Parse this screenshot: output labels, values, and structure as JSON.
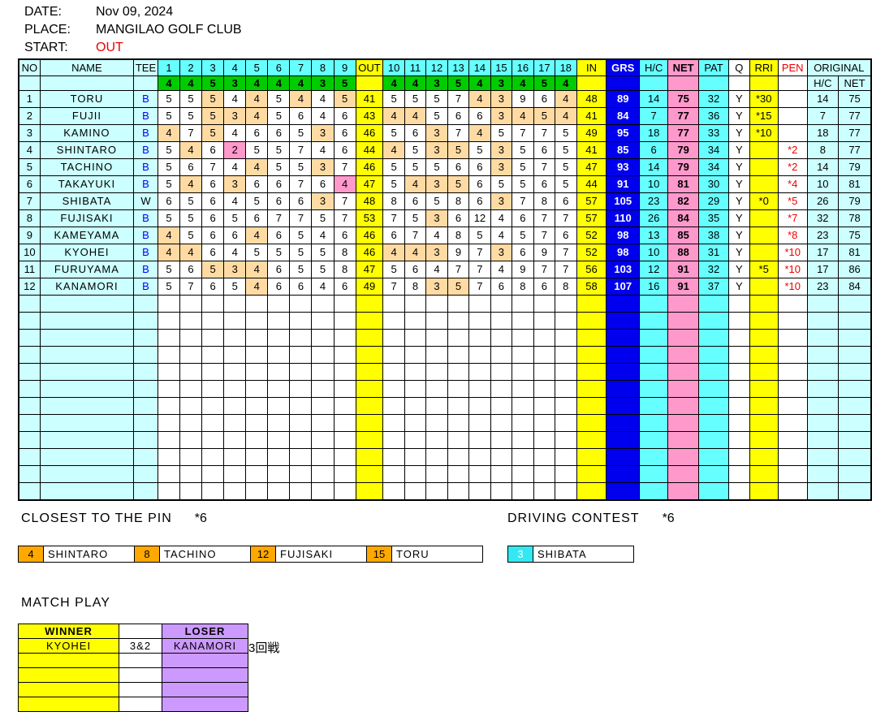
{
  "meta": {
    "date_label": "DATE:",
    "date_value": "Nov 09, 2024",
    "place_label": "PLACE:",
    "place_value": "MANGILAO GOLF CLUB",
    "start_label": "START:",
    "start_value": "OUT"
  },
  "colors": {
    "pale_cyan": "#CCFFFF",
    "bright_cyan": "#66FFFF",
    "par_green": "#00CC00",
    "total_yellow": "#FFFF00",
    "grs_blue": "#0000EE",
    "net_pink": "#FF99CC",
    "par_hit_tan": "#FFDBA3",
    "birdie_pink": "#FF99CC",
    "ctp_orange": "#FFA800",
    "loser_purple": "#CC99FF",
    "alert_red": "#EE0000",
    "tee_blue": "#0000FF"
  },
  "scorecard": {
    "columns": {
      "no": "NO",
      "name": "NAME",
      "tee": "TEE",
      "out": "OUT",
      "in": "IN",
      "grs": "GRS",
      "hc": "H/C",
      "net": "NET",
      "pat": "PAT",
      "q": "Q",
      "rri": "RRI",
      "pen": "PEN",
      "original": "ORIGINAL",
      "orig_hc": "H/C",
      "orig_net": "NET"
    },
    "holes_out": [
      "1",
      "2",
      "3",
      "4",
      "5",
      "6",
      "7",
      "8",
      "9"
    ],
    "holes_in": [
      "10",
      "11",
      "12",
      "13",
      "14",
      "15",
      "16",
      "17",
      "18"
    ],
    "pars_out": [
      4,
      4,
      5,
      3,
      4,
      4,
      4,
      3,
      5
    ],
    "pars_in": [
      4,
      4,
      3,
      5,
      4,
      3,
      4,
      5,
      4
    ],
    "empty_row_count": 12,
    "players": [
      {
        "no": 1,
        "name": "TORU",
        "tee": "B",
        "out_scores": [
          5,
          5,
          5,
          4,
          4,
          5,
          4,
          4,
          5
        ],
        "out": 41,
        "in_scores": [
          5,
          5,
          5,
          7,
          4,
          3,
          9,
          6,
          4
        ],
        "in": 48,
        "grs": 89,
        "hc": 14,
        "net": 75,
        "pat": 32,
        "q": "Y",
        "rri": "*30",
        "pen": "",
        "orig_hc": 14,
        "orig_net": 75
      },
      {
        "no": 2,
        "name": "FUJII",
        "tee": "B",
        "out_scores": [
          5,
          5,
          5,
          3,
          4,
          5,
          6,
          4,
          6
        ],
        "out": 43,
        "in_scores": [
          4,
          4,
          5,
          6,
          6,
          3,
          4,
          5,
          4
        ],
        "in": 41,
        "grs": 84,
        "hc": 7,
        "net": 77,
        "pat": 36,
        "q": "Y",
        "rri": "*15",
        "pen": "",
        "orig_hc": 7,
        "orig_net": 77
      },
      {
        "no": 3,
        "name": "KAMINO",
        "tee": "B",
        "out_scores": [
          4,
          7,
          5,
          4,
          6,
          6,
          5,
          3,
          6
        ],
        "out": 46,
        "in_scores": [
          5,
          6,
          3,
          7,
          4,
          5,
          7,
          7,
          5
        ],
        "in": 49,
        "grs": 95,
        "hc": 18,
        "net": 77,
        "pat": 33,
        "q": "Y",
        "rri": "*10",
        "pen": "",
        "orig_hc": 18,
        "orig_net": 77
      },
      {
        "no": 4,
        "name": "SHINTARO",
        "tee": "B",
        "out_scores": [
          5,
          4,
          6,
          2,
          5,
          5,
          7,
          4,
          6
        ],
        "out": 44,
        "in_scores": [
          4,
          5,
          3,
          5,
          5,
          3,
          5,
          6,
          5
        ],
        "in": 41,
        "grs": 85,
        "hc": 6,
        "net": 79,
        "pat": 34,
        "q": "Y",
        "rri": "",
        "pen": "*2",
        "orig_hc": 8,
        "orig_net": 77
      },
      {
        "no": 5,
        "name": "TACHINO",
        "tee": "B",
        "out_scores": [
          5,
          6,
          7,
          4,
          4,
          5,
          5,
          3,
          7
        ],
        "out": 46,
        "in_scores": [
          5,
          5,
          5,
          6,
          6,
          3,
          5,
          7,
          5
        ],
        "in": 47,
        "grs": 93,
        "hc": 14,
        "net": 79,
        "pat": 34,
        "q": "Y",
        "rri": "",
        "pen": "*2",
        "orig_hc": 14,
        "orig_net": 79
      },
      {
        "no": 6,
        "name": "TAKAYUKI",
        "tee": "B",
        "out_scores": [
          5,
          4,
          6,
          3,
          6,
          6,
          7,
          6,
          4
        ],
        "out": 47,
        "in_scores": [
          5,
          4,
          3,
          5,
          6,
          5,
          5,
          6,
          5
        ],
        "in": 44,
        "grs": 91,
        "hc": 10,
        "net": 81,
        "pat": 30,
        "q": "Y",
        "rri": "",
        "pen": "*4",
        "orig_hc": 10,
        "orig_net": 81
      },
      {
        "no": 7,
        "name": "SHIBATA",
        "tee": "W",
        "out_scores": [
          6,
          5,
          6,
          4,
          5,
          6,
          6,
          3,
          7
        ],
        "out": 48,
        "in_scores": [
          8,
          6,
          5,
          8,
          6,
          3,
          7,
          8,
          6
        ],
        "in": 57,
        "grs": 105,
        "hc": 23,
        "net": 82,
        "pat": 29,
        "q": "Y",
        "rri": "*0",
        "pen": "*5",
        "orig_hc": 26,
        "orig_net": 79
      },
      {
        "no": 8,
        "name": "FUJISAKI",
        "tee": "B",
        "out_scores": [
          5,
          5,
          6,
          5,
          6,
          7,
          7,
          5,
          7
        ],
        "out": 53,
        "in_scores": [
          7,
          5,
          3,
          6,
          12,
          4,
          6,
          7,
          7
        ],
        "in": 57,
        "grs": 110,
        "hc": 26,
        "net": 84,
        "pat": 35,
        "q": "Y",
        "rri": "",
        "pen": "*7",
        "orig_hc": 32,
        "orig_net": 78
      },
      {
        "no": 9,
        "name": "KAMEYAMA",
        "tee": "B",
        "out_scores": [
          4,
          5,
          6,
          6,
          4,
          6,
          5,
          4,
          6
        ],
        "out": 46,
        "in_scores": [
          6,
          7,
          4,
          8,
          5,
          4,
          5,
          7,
          6
        ],
        "in": 52,
        "grs": 98,
        "hc": 13,
        "net": 85,
        "pat": 38,
        "q": "Y",
        "rri": "",
        "pen": "*8",
        "orig_hc": 23,
        "orig_net": 75
      },
      {
        "no": 10,
        "name": "KYOHEI",
        "tee": "B",
        "out_scores": [
          4,
          4,
          6,
          4,
          5,
          5,
          5,
          5,
          8
        ],
        "out": 46,
        "in_scores": [
          4,
          4,
          3,
          9,
          7,
          3,
          6,
          9,
          7
        ],
        "in": 52,
        "grs": 98,
        "hc": 10,
        "net": 88,
        "pat": 31,
        "q": "Y",
        "rri": "",
        "pen": "*10",
        "orig_hc": 17,
        "orig_net": 81
      },
      {
        "no": 11,
        "name": "FURUYAMA",
        "tee": "B",
        "out_scores": [
          5,
          6,
          5,
          3,
          4,
          6,
          5,
          5,
          8
        ],
        "out": 47,
        "in_scores": [
          5,
          6,
          4,
          7,
          7,
          4,
          9,
          7,
          7
        ],
        "in": 56,
        "grs": 103,
        "hc": 12,
        "net": 91,
        "pat": 32,
        "q": "Y",
        "rri": "*5",
        "pen": "*10",
        "orig_hc": 17,
        "orig_net": 86
      },
      {
        "no": 12,
        "name": "KANAMORI",
        "tee": "B",
        "out_scores": [
          5,
          7,
          6,
          5,
          4,
          6,
          6,
          4,
          6
        ],
        "out": 49,
        "in_scores": [
          7,
          8,
          3,
          5,
          7,
          6,
          8,
          6,
          8
        ],
        "in": 58,
        "grs": 107,
        "hc": 16,
        "net": 91,
        "pat": 37,
        "q": "Y",
        "rri": "",
        "pen": "*10",
        "orig_hc": 23,
        "orig_net": 84
      }
    ]
  },
  "closest_to_pin": {
    "title": "CLOSEST TO THE PIN",
    "star": "*6",
    "entries": [
      {
        "hole": "4",
        "name": "SHINTARO"
      },
      {
        "hole": "8",
        "name": "TACHINO"
      },
      {
        "hole": "12",
        "name": "FUJISAKI"
      },
      {
        "hole": "15",
        "name": "TORU"
      }
    ]
  },
  "driving_contest": {
    "title": "DRIVING CONTEST",
    "star": "*6",
    "entries": [
      {
        "hole": "3",
        "name": "SHIBATA"
      }
    ]
  },
  "match_play": {
    "title": "MATCH PLAY",
    "winner_header": "WINNER",
    "loser_header": "LOSER",
    "matches": [
      {
        "winner": "KYOHEI",
        "result": "3&2",
        "loser": "KANAMORI",
        "note": "3回戦"
      }
    ],
    "empty_row_count": 4
  }
}
